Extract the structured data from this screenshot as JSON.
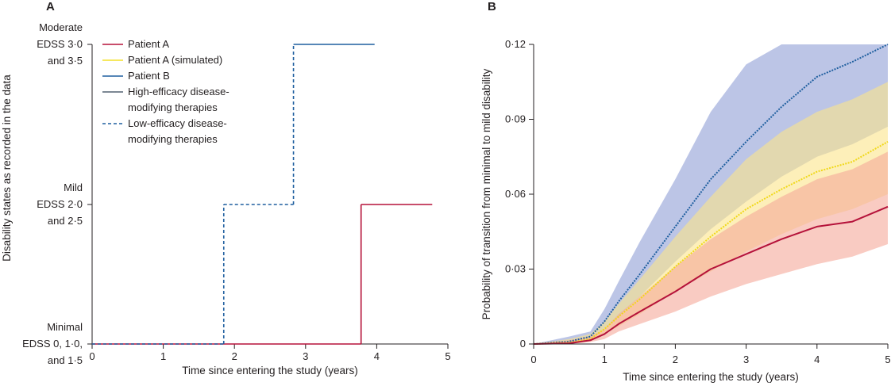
{
  "chart_data": [
    {
      "panel": "A",
      "type": "line",
      "xlabel": "Time since entering the study (years)",
      "ylabel": "Disability states as recorded in the data",
      "xlim": [
        0,
        5
      ],
      "x_ticks": [
        "0",
        "1",
        "2",
        "3",
        "4",
        "5"
      ],
      "y_states": [
        {
          "level": 0,
          "lines": [
            "Minimal",
            "EDSS 0, 1·0,",
            "and 1·5"
          ]
        },
        {
          "level": 1,
          "lines": [
            "Mild",
            "EDSS 2·0",
            "and 2·5"
          ]
        },
        {
          "level": 2,
          "lines": [
            "Moderate",
            "EDSS 3·0",
            "and 3·5"
          ]
        }
      ],
      "legend": [
        {
          "label_lines": [
            "Patient A"
          ],
          "color": "#b5123a",
          "style": "solid"
        },
        {
          "label_lines": [
            "Patient A (simulated)"
          ],
          "color": "#f4e02a",
          "style": "solid"
        },
        {
          "label_lines": [
            "Patient B"
          ],
          "color": "#1f5f9f",
          "style": "solid"
        },
        {
          "label_lines": [
            "High-efficacy disease-",
            "modifying therapies"
          ],
          "color": "#506070",
          "style": "solid"
        },
        {
          "label_lines": [
            "Low-efficacy disease-",
            "modifying therapies"
          ],
          "color": "#1f5f9f",
          "style": "dashed"
        }
      ],
      "series": [
        {
          "name": "Patient A",
          "color": "#b5123a",
          "steps": [
            {
              "x0": 0,
              "x1": 3.78,
              "y": 0,
              "style": "solid"
            },
            {
              "x0": 3.78,
              "x1": 4.78,
              "y": 1,
              "style": "solid"
            }
          ]
        },
        {
          "name": "Patient B",
          "color": "#1f5f9f",
          "steps": [
            {
              "x0": 0,
              "x1": 1.85,
              "y": 0,
              "style": "dashed"
            },
            {
              "x0": 1.85,
              "x1": 2.83,
              "y": 1,
              "style": "dashed"
            },
            {
              "x0": 2.83,
              "x1": 3.97,
              "y": 2,
              "style": "solid"
            }
          ]
        }
      ]
    },
    {
      "panel": "B",
      "type": "line",
      "xlabel": "Time since entering the study (years)",
      "ylabel": "Probability of transition from minimal to mild disability",
      "xlim": [
        0,
        5
      ],
      "ylim": [
        0,
        0.12
      ],
      "x_ticks": [
        "0",
        "1",
        "2",
        "3",
        "4",
        "5"
      ],
      "y_ticks": [
        {
          "value": 0,
          "label": "0"
        },
        {
          "value": 0.03,
          "label": "0·03"
        },
        {
          "value": 0.06,
          "label": "0·06"
        },
        {
          "value": 0.09,
          "label": "0·09"
        },
        {
          "value": 0.12,
          "label": "0·12"
        }
      ],
      "series": [
        {
          "name": "Patient B",
          "color": "#1f5f9f",
          "band_color": "#8f9fd6",
          "line_style": "dotted",
          "x": [
            0,
            0.5,
            0.8,
            1.0,
            1.2,
            1.5,
            2.0,
            2.5,
            3.0,
            3.5,
            4.0,
            4.5,
            5.0
          ],
          "y": [
            0,
            0.001,
            0.003,
            0.009,
            0.017,
            0.028,
            0.047,
            0.066,
            0.081,
            0.095,
            0.107,
            0.113,
            0.12
          ],
          "lower": [
            0,
            0,
            0.002,
            0.006,
            0.011,
            0.019,
            0.033,
            0.046,
            0.057,
            0.067,
            0.075,
            0.08,
            0.087
          ],
          "upper": [
            0,
            0.003,
            0.005,
            0.014,
            0.025,
            0.041,
            0.066,
            0.093,
            0.112,
            0.12,
            0.12,
            0.12,
            0.12
          ]
        },
        {
          "name": "Patient A (simulated)",
          "color": "#f0d818",
          "band_color": "#fbe48a",
          "line_style": "dotted",
          "x": [
            0,
            0.5,
            0.8,
            1.0,
            1.2,
            1.5,
            2.0,
            2.5,
            3.0,
            3.5,
            4.0,
            4.5,
            5.0
          ],
          "y": [
            0,
            0.0005,
            0.002,
            0.006,
            0.011,
            0.018,
            0.031,
            0.043,
            0.054,
            0.062,
            0.069,
            0.073,
            0.081
          ],
          "lower": [
            0,
            0,
            0.001,
            0.004,
            0.007,
            0.012,
            0.021,
            0.029,
            0.037,
            0.044,
            0.05,
            0.054,
            0.06
          ],
          "upper": [
            0,
            0.002,
            0.004,
            0.009,
            0.016,
            0.026,
            0.043,
            0.059,
            0.074,
            0.085,
            0.093,
            0.098,
            0.105
          ]
        },
        {
          "name": "Patient A",
          "color": "#b5123a",
          "band_color": "#f5a89a",
          "line_style": "solid",
          "x": [
            0,
            0.5,
            0.8,
            1.0,
            1.2,
            1.5,
            2.0,
            2.5,
            3.0,
            3.5,
            4.0,
            4.5,
            5.0
          ],
          "y": [
            0,
            0.0003,
            0.0015,
            0.004,
            0.008,
            0.013,
            0.021,
            0.03,
            0.036,
            0.042,
            0.047,
            0.049,
            0.055
          ],
          "lower": [
            0,
            0,
            0.0008,
            0.002,
            0.005,
            0.008,
            0.013,
            0.019,
            0.024,
            0.028,
            0.032,
            0.035,
            0.04
          ],
          "upper": [
            0,
            0.0015,
            0.003,
            0.006,
            0.012,
            0.019,
            0.031,
            0.042,
            0.051,
            0.059,
            0.066,
            0.07,
            0.077
          ]
        }
      ]
    }
  ]
}
